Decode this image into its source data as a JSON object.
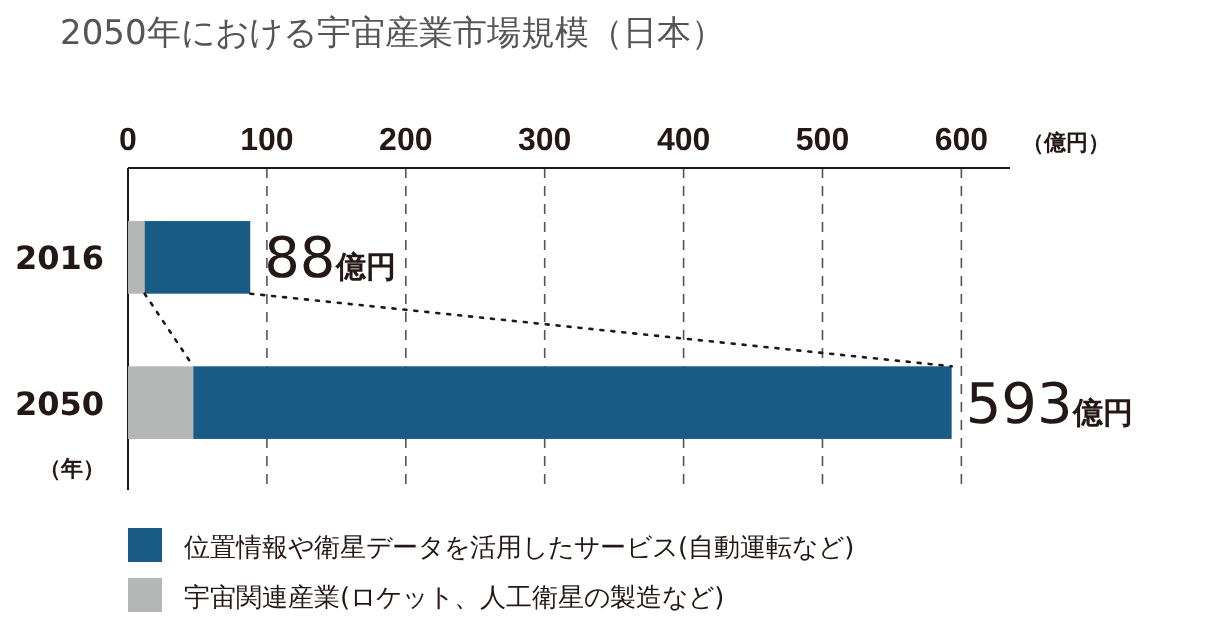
{
  "chart_data": {
    "type": "bar",
    "title": "2050年における宇宙産業市場規模（日本）",
    "orientation": "horizontal",
    "stacked": true,
    "categories": [
      "2016",
      "2050"
    ],
    "series": [
      {
        "name": "宇宙関連産業(ロケット、人工衛星の製造など)",
        "color": "#b5b6b6",
        "values": [
          12,
          47
        ]
      },
      {
        "name": "位置情報や衛星データを活用したサービス(自動運転など)",
        "color": "#195b85",
        "values": [
          76,
          546
        ]
      }
    ],
    "totals": [
      "88億円",
      "593億円"
    ],
    "xlim": [
      0,
      635
    ],
    "xticks": [
      0,
      100,
      200,
      300,
      400,
      500,
      600
    ],
    "xlabel": "（億円）",
    "ylabel": "（年）",
    "grid": "x",
    "legend": "bottom"
  }
}
